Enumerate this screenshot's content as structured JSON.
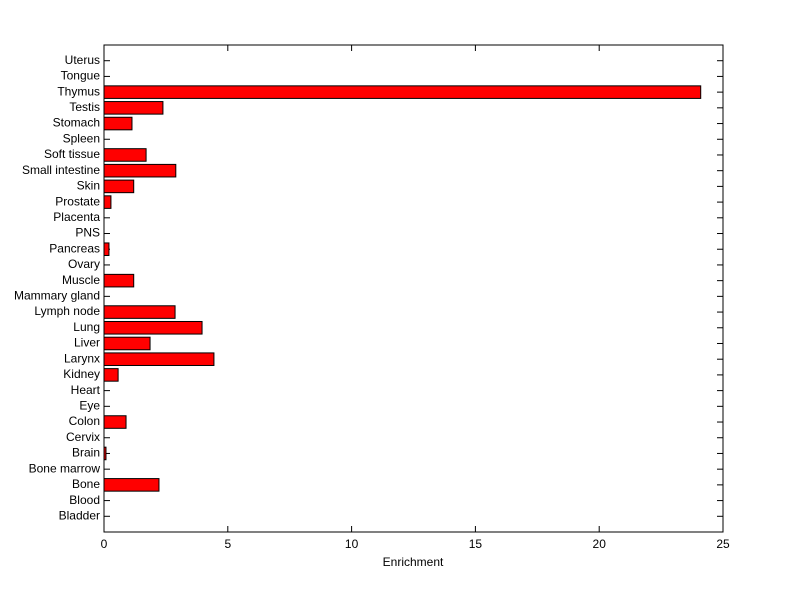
{
  "chart_data": {
    "type": "barh",
    "xlabel": "Enrichment",
    "categories": [
      "Bladder",
      "Blood",
      "Bone",
      "Bone marrow",
      "Brain",
      "Cervix",
      "Colon",
      "Eye",
      "Heart",
      "Kidney",
      "Larynx",
      "Liver",
      "Lung",
      "Lymph node",
      "Mammary gland",
      "Muscle",
      "Ovary",
      "Pancreas",
      "PNS",
      "Placenta",
      "Prostate",
      "Skin",
      "Small intestine",
      "Soft tissue",
      "Spleen",
      "Stomach",
      "Testis",
      "Thymus",
      "Tongue",
      "Uterus"
    ],
    "values": [
      0,
      0,
      2.22,
      0,
      0.08,
      0,
      0.89,
      0,
      0,
      0.57,
      4.44,
      1.86,
      3.96,
      2.87,
      0,
      1.2,
      0,
      0.2,
      0,
      0,
      0.28,
      1.2,
      2.9,
      1.7,
      0,
      1.13,
      2.38,
      24.1,
      0,
      0
    ],
    "color": "#ff0000",
    "xlim": [
      0,
      25
    ],
    "xticks": [
      0,
      5,
      10,
      15,
      20,
      25
    ]
  }
}
